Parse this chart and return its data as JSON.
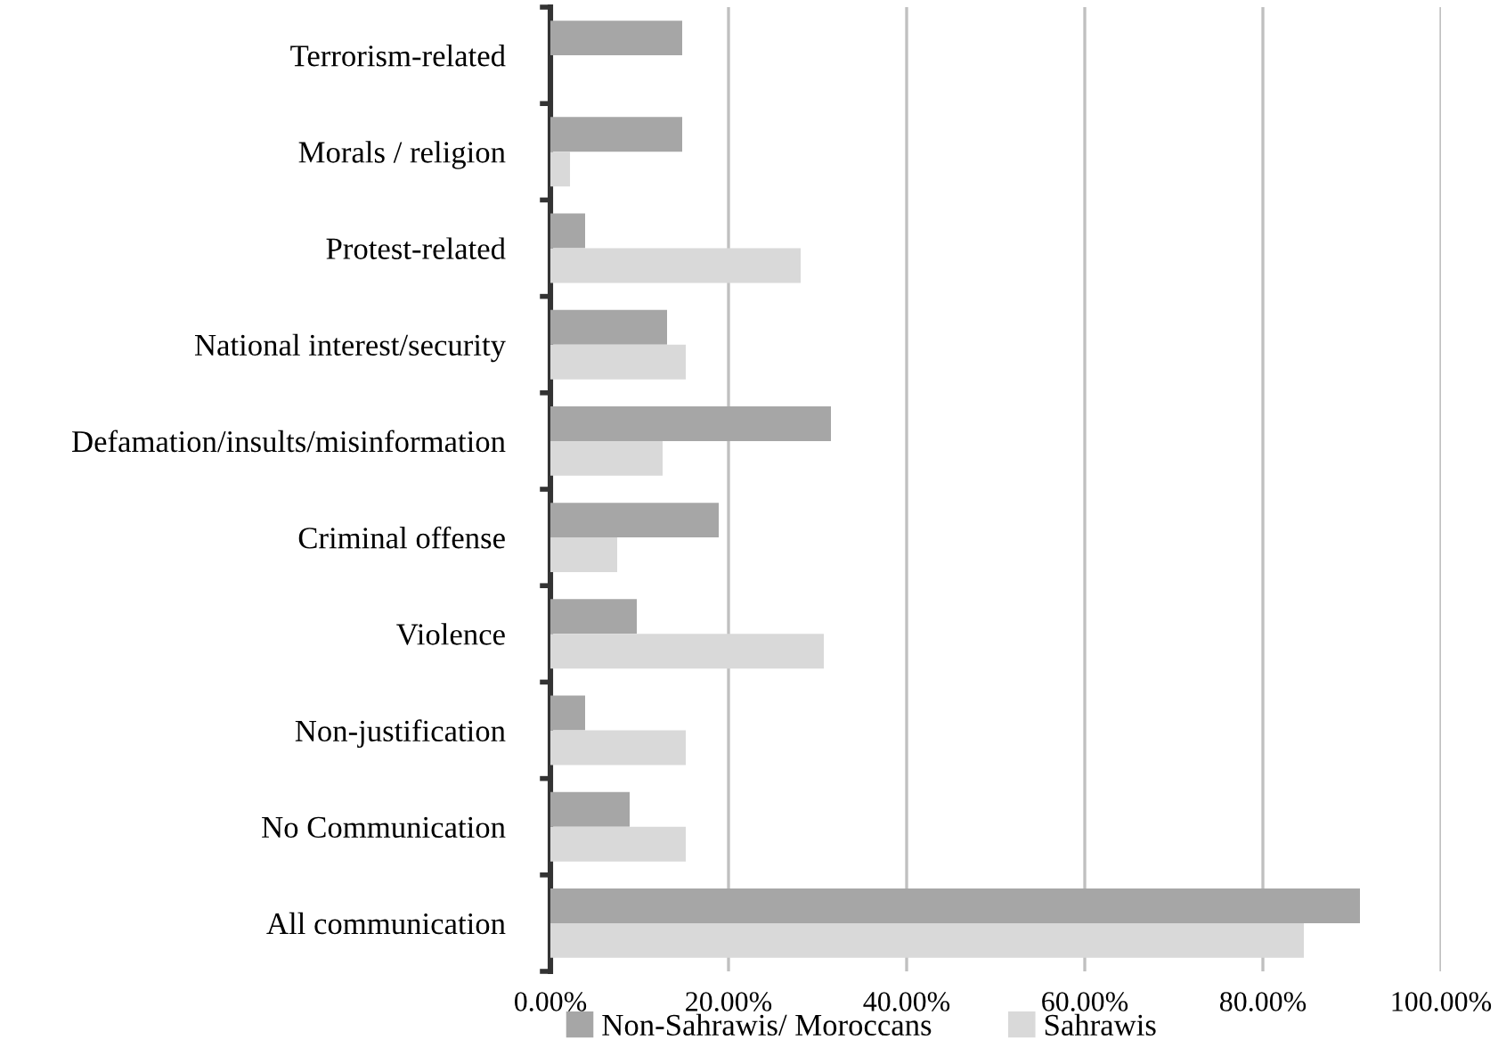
{
  "chart_data": {
    "type": "bar",
    "orientation": "horizontal",
    "categories": [
      "Terrorism-related",
      "Morals / religion",
      "Protest-related",
      "National interest/security",
      "Defamation/insults/misinformation",
      "Criminal offense",
      "Violence",
      "Non-justification",
      "No Communication",
      "All communication"
    ],
    "series": [
      {
        "name": "Non-Sahrawis/ Moroccans",
        "color": "#a6a6a6",
        "values": [
          14.8,
          14.8,
          3.9,
          13.1,
          31.5,
          18.9,
          9.7,
          3.9,
          8.9,
          90.9
        ]
      },
      {
        "name": "Sahrawis",
        "color": "#d9d9d9",
        "values": [
          0,
          2.2,
          28.1,
          15.2,
          12.6,
          7.5,
          30.7,
          15.2,
          15.2,
          84.6
        ]
      }
    ],
    "xlim": [
      0,
      100
    ],
    "xticks": [
      {
        "value": 0,
        "label": "0.00%"
      },
      {
        "value": 20,
        "label": "20.00%"
      },
      {
        "value": 40,
        "label": "40.00%"
      },
      {
        "value": 60,
        "label": "60.00%"
      },
      {
        "value": 80,
        "label": "80.00%"
      },
      {
        "value": 100,
        "label": "100.00%"
      }
    ],
    "grid": "x",
    "legend": "bottom"
  }
}
